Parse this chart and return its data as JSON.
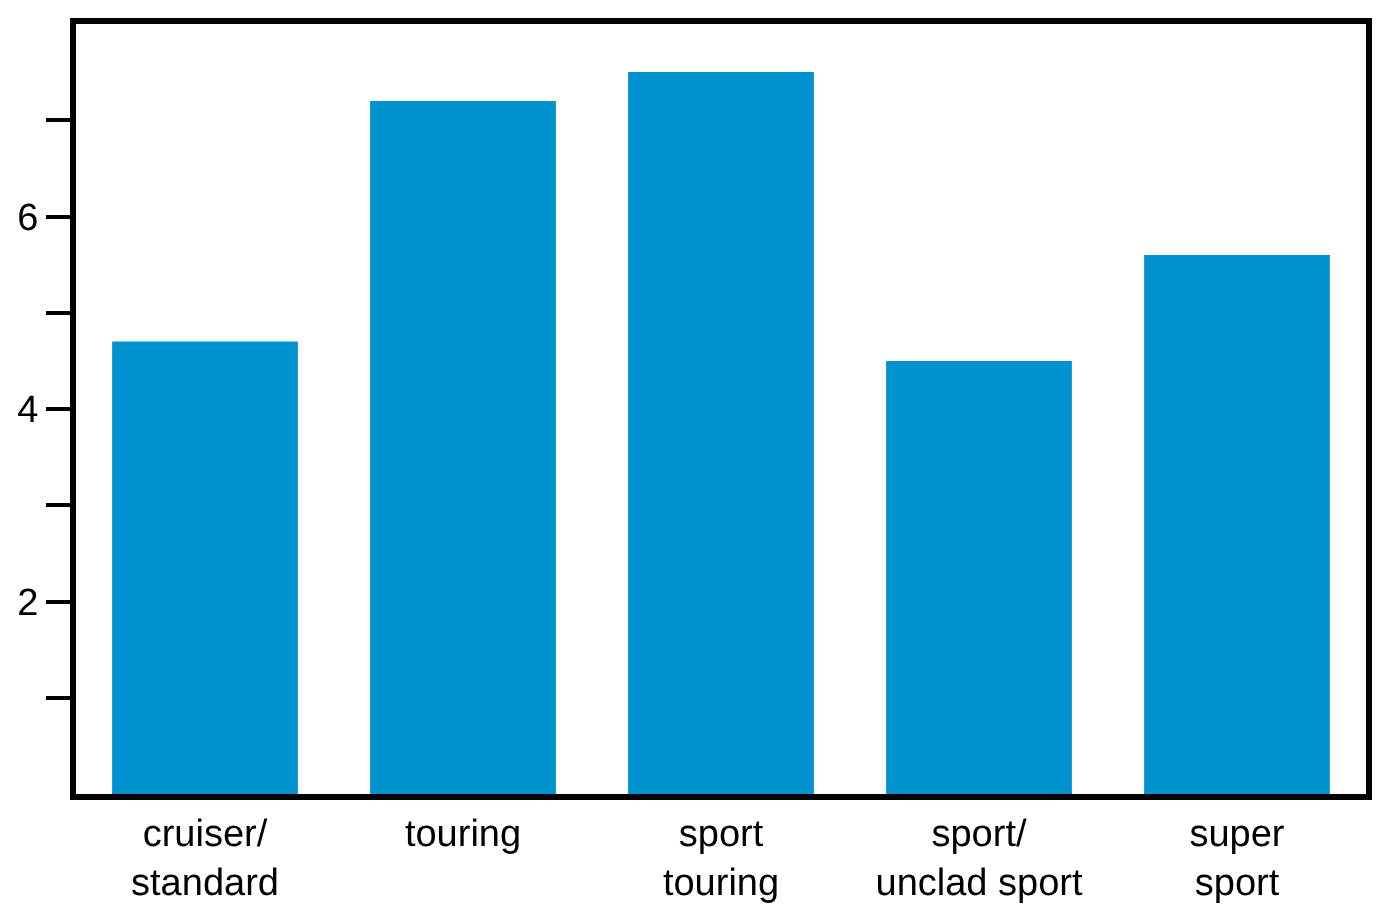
{
  "chart_data": {
    "type": "bar",
    "categories": [
      "cruiser/\nstandard",
      "touring",
      "sport\ntouring",
      "sport/\nunclad sport",
      "super\nsport"
    ],
    "values": [
      4.7,
      7.2,
      7.5,
      4.5,
      5.6
    ],
    "color": "#0093d0",
    "ylim": [
      0,
      8
    ],
    "yticks": [
      {
        "value": 1,
        "label": null
      },
      2,
      {
        "value": 3,
        "label": null
      },
      4,
      {
        "value": 5,
        "label": null
      },
      6,
      {
        "value": 7,
        "label": null
      }
    ]
  }
}
